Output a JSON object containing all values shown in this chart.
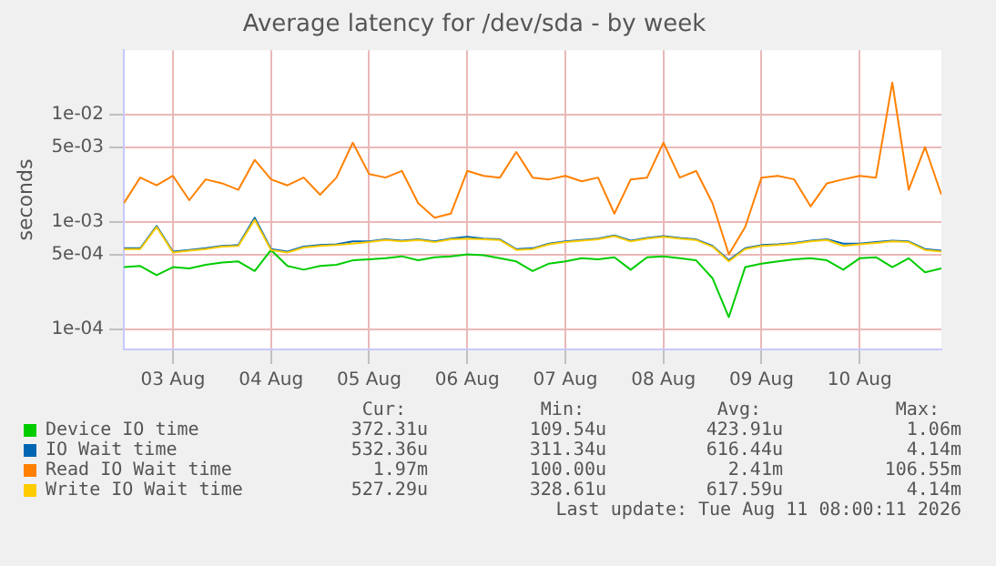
{
  "chart_data": {
    "type": "line",
    "title": "Average latency for /dev/sda - by week",
    "ylabel": "seconds",
    "log": true,
    "grid": true,
    "legend": "bottom",
    "marker": "none",
    "xlim": [
      "2026-08-03T00:00",
      "2026-08-11T08:00"
    ],
    "xticks": [
      {
        "value": "2026-08-03T12:00",
        "label": "03 Aug"
      },
      {
        "value": "2026-08-04T12:00",
        "label": "04 Aug"
      },
      {
        "value": "2026-08-05T12:00",
        "label": "05 Aug"
      },
      {
        "value": "2026-08-06T12:00",
        "label": "06 Aug"
      },
      {
        "value": "2026-08-07T12:00",
        "label": "07 Aug"
      },
      {
        "value": "2026-08-08T12:00",
        "label": "08 Aug"
      },
      {
        "value": "2026-08-09T12:00",
        "label": "09 Aug"
      },
      {
        "value": "2026-08-10T12:00",
        "label": "10 Aug"
      }
    ],
    "ylim": [
      6.5e-05,
      0.04
    ],
    "yticks": [
      {
        "value": 0.0001,
        "label": "1e-04"
      },
      {
        "value": 0.0005,
        "label": "5e-04"
      },
      {
        "value": 0.001,
        "label": "1e-03"
      },
      {
        "value": 0.005,
        "label": "5e-03"
      },
      {
        "value": 0.01,
        "label": "1e-02"
      }
    ],
    "x": [
      "2026-08-03T00:00",
      "2026-08-03T04:00",
      "2026-08-03T08:00",
      "2026-08-03T12:00",
      "2026-08-03T16:00",
      "2026-08-03T20:00",
      "2026-08-04T00:00",
      "2026-08-04T04:00",
      "2026-08-04T08:00",
      "2026-08-04T12:00",
      "2026-08-04T16:00",
      "2026-08-04T20:00",
      "2026-08-05T00:00",
      "2026-08-05T04:00",
      "2026-08-05T08:00",
      "2026-08-05T12:00",
      "2026-08-05T16:00",
      "2026-08-05T20:00",
      "2026-08-06T00:00",
      "2026-08-06T04:00",
      "2026-08-06T08:00",
      "2026-08-06T12:00",
      "2026-08-06T16:00",
      "2026-08-06T20:00",
      "2026-08-07T00:00",
      "2026-08-07T04:00",
      "2026-08-07T08:00",
      "2026-08-07T12:00",
      "2026-08-07T16:00",
      "2026-08-07T20:00",
      "2026-08-08T00:00",
      "2026-08-08T04:00",
      "2026-08-08T08:00",
      "2026-08-08T12:00",
      "2026-08-08T16:00",
      "2026-08-08T20:00",
      "2026-08-09T00:00",
      "2026-08-09T04:00",
      "2026-08-09T08:00",
      "2026-08-09T12:00",
      "2026-08-09T16:00",
      "2026-08-09T20:00",
      "2026-08-10T00:00",
      "2026-08-10T04:00",
      "2026-08-10T08:00",
      "2026-08-10T12:00",
      "2026-08-10T16:00",
      "2026-08-10T20:00",
      "2026-08-11T00:00",
      "2026-08-11T04:00",
      "2026-08-11T08:00"
    ],
    "series": [
      {
        "name": "Device IO time",
        "color": "#00cc00",
        "values": [
          0.00038,
          0.00039,
          0.00032,
          0.00038,
          0.00037,
          0.0004,
          0.00042,
          0.00043,
          0.00035,
          0.00055,
          0.00039,
          0.00036,
          0.00039,
          0.0004,
          0.00044,
          0.00045,
          0.00046,
          0.00048,
          0.00044,
          0.00047,
          0.00048,
          0.0005,
          0.00049,
          0.00046,
          0.00043,
          0.00035,
          0.00041,
          0.00043,
          0.00046,
          0.00045,
          0.00047,
          0.00036,
          0.00047,
          0.00048,
          0.00046,
          0.00044,
          0.0003,
          0.00013,
          0.00038,
          0.00041,
          0.00043,
          0.00045,
          0.00046,
          0.00044,
          0.00036,
          0.00046,
          0.00047,
          0.00038,
          0.00046,
          0.00034,
          0.00037
        ]
      },
      {
        "name": "IO Wait time",
        "color": "#0066b3",
        "values": [
          0.00057,
          0.00057,
          0.00092,
          0.00053,
          0.00055,
          0.00057,
          0.0006,
          0.00061,
          0.0011,
          0.00056,
          0.00053,
          0.00059,
          0.00061,
          0.00062,
          0.00066,
          0.00066,
          0.00069,
          0.00067,
          0.00069,
          0.00066,
          0.0007,
          0.00073,
          0.0007,
          0.00069,
          0.00056,
          0.00057,
          0.00063,
          0.00066,
          0.00068,
          0.0007,
          0.00075,
          0.00067,
          0.00071,
          0.00074,
          0.00071,
          0.00069,
          0.0006,
          0.00044,
          0.00057,
          0.00061,
          0.00062,
          0.00064,
          0.00067,
          0.00069,
          0.00063,
          0.00063,
          0.00065,
          0.00067,
          0.00066,
          0.00056,
          0.00054
        ]
      },
      {
        "name": "Read IO Wait time",
        "color": "#ff8000",
        "values": [
          0.0015,
          0.0026,
          0.0022,
          0.0027,
          0.0016,
          0.0025,
          0.0023,
          0.002,
          0.0038,
          0.0025,
          0.0022,
          0.0026,
          0.0018,
          0.0026,
          0.0055,
          0.0028,
          0.0026,
          0.003,
          0.0015,
          0.0011,
          0.0012,
          0.003,
          0.0027,
          0.0026,
          0.0045,
          0.0026,
          0.0025,
          0.0027,
          0.0024,
          0.0026,
          0.0012,
          0.0025,
          0.0026,
          0.0055,
          0.0026,
          0.003,
          0.0015,
          0.0005,
          0.0009,
          0.0026,
          0.0027,
          0.0025,
          0.0014,
          0.0023,
          0.0025,
          0.0027,
          0.0026,
          0.02,
          0.002,
          0.005,
          0.0018
        ]
      },
      {
        "name": "Write IO Wait time",
        "color": "#ffcc00",
        "values": [
          0.00056,
          0.00056,
          0.0009,
          0.00052,
          0.00054,
          0.00056,
          0.00059,
          0.0006,
          0.00105,
          0.00055,
          0.00052,
          0.00058,
          0.0006,
          0.00061,
          0.00063,
          0.00065,
          0.00068,
          0.00066,
          0.00068,
          0.00065,
          0.00069,
          0.0007,
          0.00069,
          0.00068,
          0.00055,
          0.00056,
          0.00062,
          0.00065,
          0.00067,
          0.00069,
          0.00074,
          0.00066,
          0.0007,
          0.00073,
          0.0007,
          0.00068,
          0.00059,
          0.00043,
          0.00056,
          0.0006,
          0.00061,
          0.00063,
          0.00066,
          0.00068,
          0.0006,
          0.00062,
          0.00064,
          0.00066,
          0.00065,
          0.00055,
          0.00053
        ]
      }
    ],
    "annotations": [
      "Cur:",
      "Min:",
      "Avg:",
      "Max:",
      "372.31u",
      "109.54u",
      "423.91u",
      "1.06m",
      "532.36u",
      "311.34u",
      "616.44u",
      "4.14m",
      "1.97m",
      "100.00u",
      "2.41m",
      "106.55m",
      "527.29u",
      "328.61u",
      "617.59u",
      "4.14m",
      "Last update: Tue Aug 11 08:00:11 2026"
    ]
  }
}
